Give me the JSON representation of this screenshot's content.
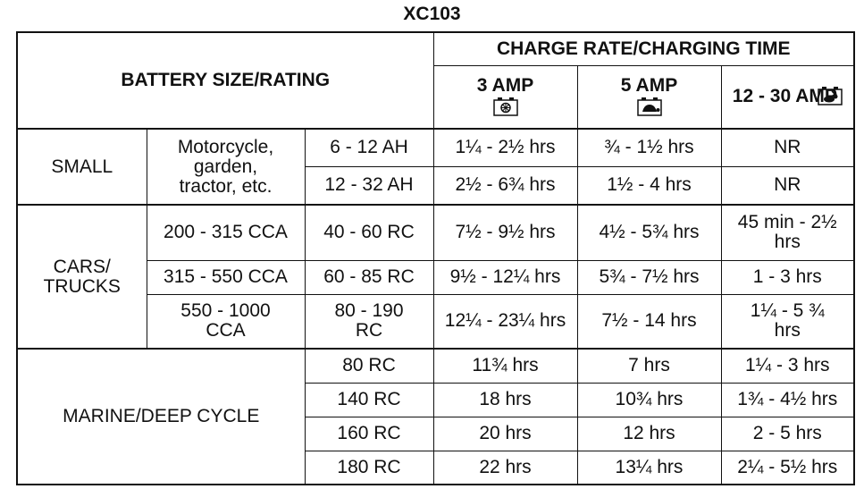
{
  "title": "XC103",
  "header": {
    "battery_size": "BATTERY SIZE/RATING",
    "charge_rate": "CHARGE RATE/CHARGING TIME",
    "amps": [
      "3 AMP",
      "5 AMP",
      "12 - 30 AMP"
    ]
  },
  "groups": [
    {
      "label": "SMALL",
      "type": "Motorcycle, garden, tractor, etc.",
      "rows": [
        {
          "rating": "6 - 12 AH",
          "times": [
            "1¼ - 2½ hrs",
            "¾ - 1½ hrs",
            "NR"
          ]
        },
        {
          "rating": "12 - 32 AH",
          "times": [
            "2½ - 6¾ hrs",
            "1½ - 4 hrs",
            "NR"
          ]
        }
      ]
    },
    {
      "label": "CARS/ TRUCKS",
      "rows": [
        {
          "type": "200 - 315 CCA",
          "rating": "40 - 60 RC",
          "times": [
            "7½ - 9½ hrs",
            "4½ - 5¾ hrs",
            "45 min - 2½ hrs"
          ]
        },
        {
          "type": "315 - 550 CCA",
          "rating": "60 - 85 RC",
          "times": [
            "9½ - 12¼ hrs",
            "5¾ - 7½ hrs",
            "1 - 3 hrs"
          ]
        },
        {
          "type": "550 - 1000 CCA",
          "rating": "80 - 190 RC",
          "times": [
            "12¼ - 23¼ hrs",
            "7½ - 14 hrs",
            "1¼ - 5 ¾ hrs"
          ]
        }
      ]
    },
    {
      "label": "MARINE/DEEP CYCLE",
      "rows": [
        {
          "rating": "80 RC",
          "times": [
            "11¾ hrs",
            "7 hrs",
            "1¼ - 3 hrs"
          ]
        },
        {
          "rating": "140 RC",
          "times": [
            "18 hrs",
            "10¾ hrs",
            "1¾ - 4½ hrs"
          ]
        },
        {
          "rating": "160 RC",
          "times": [
            "20 hrs",
            "12 hrs",
            "2 - 5 hrs"
          ]
        },
        {
          "rating": "180 RC",
          "times": [
            "22 hrs",
            "13¼ hrs",
            "2¼ - 5½ hrs"
          ]
        }
      ]
    }
  ]
}
